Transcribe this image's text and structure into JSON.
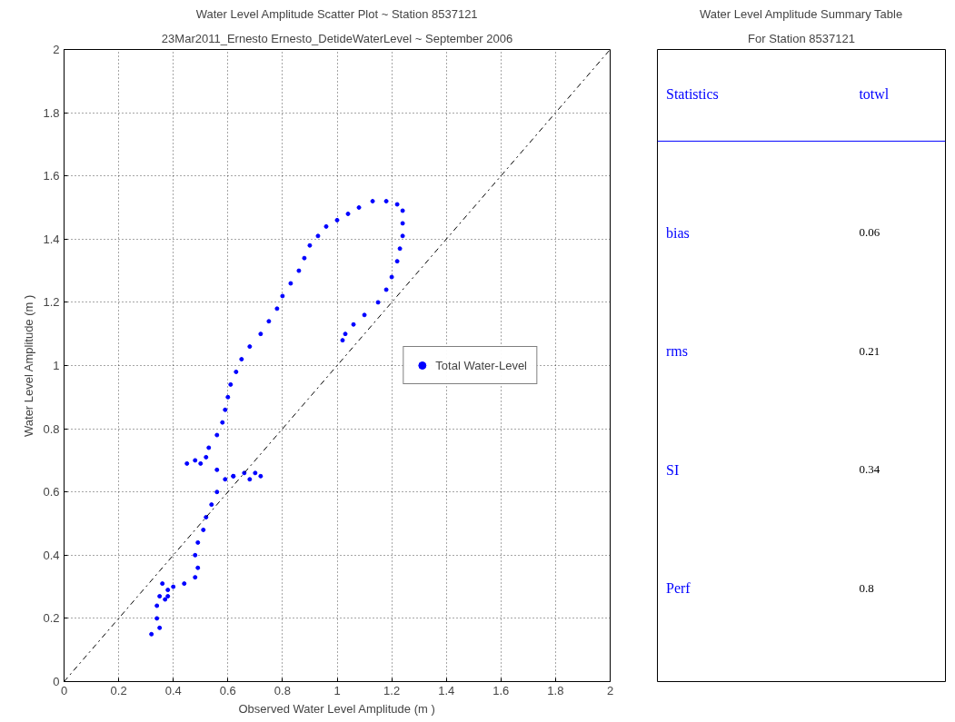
{
  "chart_data": [
    {
      "type": "scatter",
      "title": "Water Level Amplitude Scatter Plot ~ Station 8537121",
      "subtitle": "23Mar2011_Ernesto Ernesto_DetideWaterLevel ~ September 2006",
      "xlabel": "Observed Water Level Amplitude (m )",
      "ylabel": "Water Level Amplitude (m )",
      "xlim": [
        0,
        2
      ],
      "ylim": [
        0,
        2
      ],
      "xticks": [
        0,
        0.2,
        0.4,
        0.6,
        0.8,
        1,
        1.2,
        1.4,
        1.6,
        1.8,
        2
      ],
      "yticks": [
        0,
        0.2,
        0.4,
        0.6,
        0.8,
        1,
        1.2,
        1.4,
        1.6,
        1.8,
        2
      ],
      "grid": true,
      "legend": "right",
      "marker": "circle",
      "series": [
        {
          "name": "Total Water-Level",
          "color": "#0000ff",
          "x": [
            0.32,
            0.35,
            0.34,
            0.34,
            0.35,
            0.36,
            0.38,
            0.37,
            0.38,
            0.4,
            0.44,
            0.48,
            0.49,
            0.48,
            0.49,
            0.51,
            0.52,
            0.54,
            0.56,
            0.59,
            0.62,
            0.66,
            0.7,
            0.72,
            0.68,
            0.62,
            0.56,
            0.5,
            0.45,
            0.48,
            0.52,
            0.53,
            0.56,
            0.58,
            0.59,
            0.6,
            0.61,
            0.63,
            0.65,
            0.68,
            0.72,
            0.75,
            0.78,
            0.8,
            0.83,
            0.86,
            0.88,
            0.9,
            0.93,
            0.96,
            1.0,
            1.04,
            1.08,
            1.13,
            1.18,
            1.22,
            1.24,
            1.24,
            1.24,
            1.23,
            1.22,
            1.2,
            1.18,
            1.15,
            1.1,
            1.06,
            1.03,
            1.02
          ],
          "values": [
            0.15,
            0.17,
            0.2,
            0.24,
            0.27,
            0.31,
            0.29,
            0.26,
            0.27,
            0.3,
            0.31,
            0.33,
            0.36,
            0.4,
            0.44,
            0.48,
            0.52,
            0.56,
            0.6,
            0.64,
            0.65,
            0.66,
            0.66,
            0.65,
            0.64,
            0.65,
            0.67,
            0.69,
            0.69,
            0.7,
            0.71,
            0.74,
            0.78,
            0.82,
            0.86,
            0.9,
            0.94,
            0.98,
            1.02,
            1.06,
            1.1,
            1.14,
            1.18,
            1.22,
            1.26,
            1.3,
            1.34,
            1.38,
            1.41,
            1.44,
            1.46,
            1.48,
            1.5,
            1.52,
            1.52,
            1.51,
            1.49,
            1.45,
            1.41,
            1.37,
            1.33,
            1.28,
            1.24,
            1.2,
            1.16,
            1.13,
            1.1,
            1.08
          ]
        },
        {
          "type": "line",
          "color": "#000000",
          "line_style": "dashdot",
          "marker": "none",
          "x": [
            0,
            2
          ],
          "values": [
            0,
            2
          ]
        }
      ]
    },
    {
      "type": "other",
      "title": "Water Level Amplitude Summary Table",
      "subtitle": "For Station 8537121",
      "legend_title": "Statistics",
      "categories": [
        "bias",
        "rms",
        "SI",
        "Perf"
      ],
      "data_labels": true,
      "series": [
        {
          "name": "totwl",
          "color": "#0000ff",
          "values": [
            0.06,
            0.21,
            0.34,
            0.8
          ]
        }
      ]
    }
  ]
}
